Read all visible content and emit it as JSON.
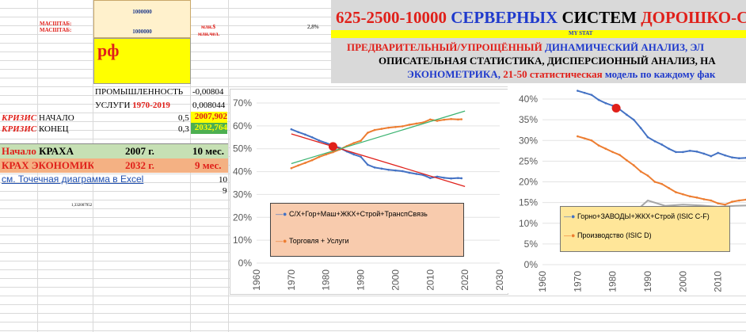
{
  "left": {
    "scale1_label": "МАСШТАБ:",
    "scale2_label": "МАСШТАБ:",
    "scale_top": "1000000",
    "scale_mid": "1000000",
    "unit1": "млн.$",
    "unit2": "млн.чел.",
    "rf": "рф",
    "percent": "2,8%",
    "industry_label": "ПРОМЫШЛЕННОСТЬ",
    "industry_val": "-0,00804",
    "services_label": "УСЛУГИ",
    "services_years": "1970-2019",
    "services_val": "0,008044",
    "crisis_word": "КРИЗИС",
    "start_label": "НАЧАЛО",
    "start_coef": "0,5",
    "start_year": "2007,902",
    "end_label": "КОНЕЦ",
    "end_coef": "0,3",
    "end_year": "2032,764",
    "crash_start_label_a": "Начало",
    "crash_start_label_b": "КРАХА",
    "crash_start_year": "2007 г.",
    "crash_start_months": "10 мес.",
    "crash_econ_label_a": "КРАХ",
    "crash_econ_label_b": "ЭКОНОМИК",
    "crash_econ_year": "2032 г.",
    "crash_econ_months": "9 мес.",
    "link": "см. Точечная диаграмма в Excel",
    "num10": "10",
    "num9": "9",
    "small_num": "1,332007952"
  },
  "banner": {
    "title_a": "625-2500-10000 ",
    "title_b": "СЕРВЕРНЫХ",
    "title_c": " СИСТЕМ ",
    "title_d": "ДОРОШКО-С",
    "mystat": "MY STAT",
    "line1_a": "ПРЕДВАРИТЕЛЬНЫЙ/УПРОЩЁННЫЙ ",
    "line1_b": "ДИНАМИЧЕСКИЙ АНАЛИЗ, ЭЛ",
    "line2": "ОПИСАТЕЛЬНАЯ СТАТИСТИКА, ДИСПЕРСИОННЫЙ АНАЛИЗ, НА",
    "line3_a": "ЭКОНОМЕТРИКА, ",
    "line3_b": "21-50 статистическая",
    "line3_c": " модель по каждому фак"
  },
  "colors": {
    "blue": "#4472c4",
    "orange": "#ed7d31",
    "red": "#e0201a",
    "green": "#70ad47",
    "yellow": "#ffff00"
  },
  "chart_data": [
    {
      "type": "line",
      "ylim": [
        0,
        70
      ],
      "xlim": [
        1960,
        2030
      ],
      "yticks": [
        "0%",
        "10%",
        "20%",
        "30%",
        "40%",
        "50%",
        "60%",
        "70%"
      ],
      "xticks": [
        "1960",
        "1970",
        "1980",
        "1990",
        "2000",
        "2010",
        "2020",
        "2030"
      ],
      "series": [
        {
          "name": "С/Х+Гор+Маш+ЖКХ+Строй+ТранспСвязь",
          "color": "#4472c4",
          "x": [
            1970,
            1972,
            1974,
            1976,
            1978,
            1980,
            1982,
            1984,
            1986,
            1988,
            1990,
            1992,
            1994,
            1996,
            1998,
            2000,
            2002,
            2004,
            2006,
            2008,
            2010,
            2012,
            2014,
            2016,
            2018,
            2019
          ],
          "y": [
            58.5,
            57.3,
            56.2,
            55,
            53.6,
            52.5,
            51.5,
            50.3,
            48.8,
            47.5,
            46.5,
            43,
            41.8,
            41.3,
            40.8,
            40.5,
            40.2,
            39.5,
            39,
            38.5,
            37.2,
            37.8,
            37.3,
            37,
            37.2,
            37.1
          ]
        },
        {
          "name": "Торговля + Услуги",
          "color": "#ed7d31",
          "x": [
            1970,
            1972,
            1974,
            1976,
            1978,
            1980,
            1982,
            1984,
            1986,
            1988,
            1990,
            1992,
            1994,
            1996,
            1998,
            2000,
            2002,
            2004,
            2006,
            2008,
            2010,
            2012,
            2014,
            2016,
            2018,
            2019
          ],
          "y": [
            41.5,
            42.7,
            43.8,
            45,
            46.4,
            47.5,
            48.5,
            49.7,
            51.2,
            52.5,
            53.5,
            57,
            58.2,
            58.7,
            59.2,
            59.5,
            59.8,
            60.5,
            61,
            61.5,
            62.8,
            62.2,
            62.7,
            63,
            62.8,
            62.9
          ]
        },
        {
          "trend": true,
          "color": "#e0201a",
          "x": [
            1970,
            2020
          ],
          "y": [
            56.5,
            33.5
          ]
        },
        {
          "trend": true,
          "color": "#3cb371",
          "x": [
            1970,
            2020
          ],
          "y": [
            43.5,
            66.5
          ]
        }
      ],
      "marker": {
        "x": 1982,
        "y": 51
      }
    },
    {
      "type": "line",
      "ylim": [
        0,
        40
      ],
      "xlim": [
        1960,
        2020
      ],
      "yticks": [
        "0%",
        "5%",
        "10%",
        "15%",
        "20%",
        "25%",
        "30%",
        "35%",
        "40%"
      ],
      "xticks": [
        "1960",
        "1970",
        "1980",
        "1990",
        "2000",
        "2010"
      ],
      "series": [
        {
          "name": "Горно+ЗАВОДЫ+ЖКХ+Строй (ISIC C-F)",
          "color": "#4472c4",
          "x": [
            1970,
            1972,
            1974,
            1976,
            1978,
            1980,
            1982,
            1984,
            1986,
            1988,
            1990,
            1992,
            1994,
            1996,
            1998,
            2000,
            2002,
            2004,
            2006,
            2008,
            2010,
            2012,
            2014,
            2016,
            2018,
            2019
          ],
          "y": [
            42,
            41.5,
            41,
            39.8,
            39,
            38.4,
            37.5,
            36.2,
            35,
            33,
            30.8,
            29.8,
            29,
            28,
            27.2,
            27.2,
            27.5,
            27.3,
            26.8,
            26.2,
            27,
            26.4,
            25.9,
            25.7,
            25.8,
            26
          ]
        },
        {
          "name": "Производство (ISIC D)",
          "color": "#ed7d31",
          "x": [
            1970,
            1972,
            1974,
            1976,
            1978,
            1980,
            1982,
            1984,
            1986,
            1988,
            1990,
            1992,
            1994,
            1996,
            1998,
            2000,
            2002,
            2004,
            2006,
            2008,
            2010,
            2012,
            2014,
            2016,
            2018,
            2019
          ],
          "y": [
            31,
            30.5,
            30,
            28.8,
            28,
            27.2,
            26.5,
            25.2,
            24,
            22.5,
            21.5,
            20,
            19.5,
            18.5,
            17.5,
            17,
            16.5,
            16.2,
            15.8,
            15.5,
            14.8,
            14.5,
            15.2,
            15.5,
            15.7,
            15.8
          ]
        },
        {
          "name": "",
          "color": "#a6a6a6",
          "x": [
            1970,
            1975,
            1980,
            1985,
            1988,
            1990,
            1995,
            2000,
            2005,
            2010,
            2015,
            2019
          ],
          "y": [
            12.5,
            12.5,
            12.8,
            13.2,
            14,
            15.5,
            14.2,
            14.5,
            14.3,
            14,
            14.2,
            14.3
          ]
        }
      ],
      "marker": {
        "x": 1981,
        "y": 37.8
      }
    }
  ]
}
